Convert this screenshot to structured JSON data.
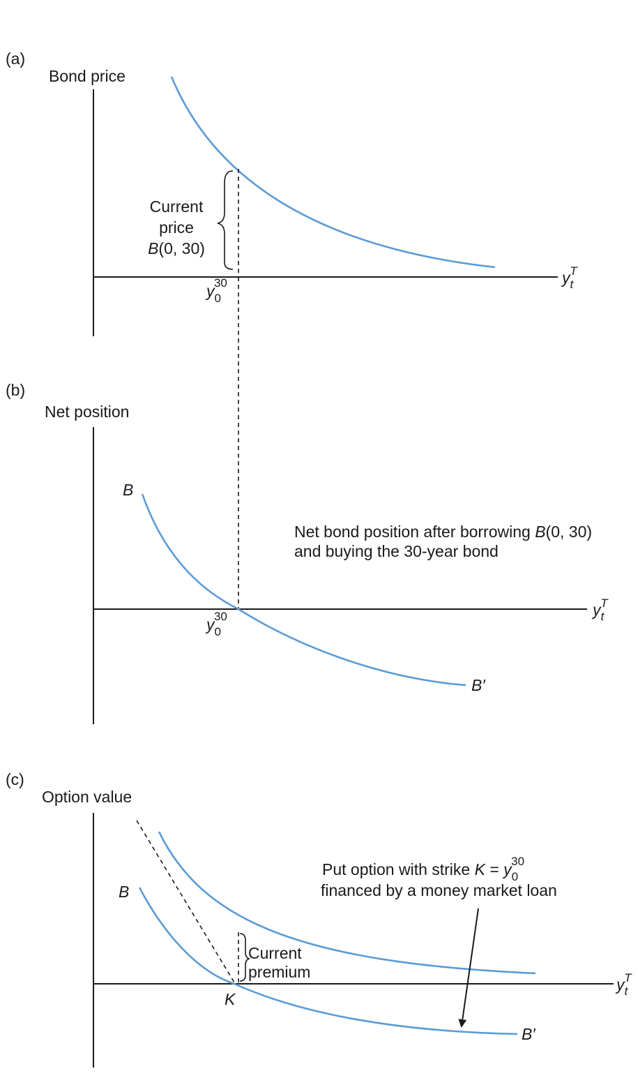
{
  "panel_a": {
    "tag": "(a)",
    "y_axis_label": "Bond price",
    "x_axis_symbol": "y",
    "x_axis_sub": "t",
    "x_axis_sup": "T",
    "brace_label_1": "Current",
    "brace_label_2": "price",
    "brace_label_3_b": "B",
    "brace_label_3_rest": "(0, 30)",
    "tick_symbol": "y",
    "tick_sub": "0",
    "tick_sup": "30"
  },
  "panel_b": {
    "tag": "(b)",
    "y_axis_label": "Net position",
    "x_axis_symbol": "y",
    "x_axis_sub": "t",
    "x_axis_sup": "T",
    "curve_start_label": "B",
    "curve_end_label": "B′",
    "tick_symbol": "y",
    "tick_sub": "0",
    "tick_sup": "30",
    "annotation_line1_pre": "Net bond position after borrowing ",
    "annotation_line1_b": "B",
    "annotation_line1_post": "(0, 30)",
    "annotation_line2": "and buying the 30-year bond"
  },
  "panel_c": {
    "tag": "(c)",
    "y_axis_label": "Option value",
    "x_axis_symbol": "y",
    "x_axis_sub": "t",
    "x_axis_sup": "T",
    "curve_start_label": "B",
    "curve_end_label": "B′",
    "strike_label": "K",
    "premium_label_1": "Current",
    "premium_label_2": "premium",
    "annotation_line1_pre": "Put option with strike ",
    "annotation_line1_k": "K",
    "annotation_line1_eq": " = ",
    "annotation_line1_y": "y",
    "annotation_line1_sub": "0",
    "annotation_line1_sup": "30",
    "annotation_line2": "financed by a money market loan"
  },
  "colors": {
    "curve": "#5b9bd5",
    "ink": "#1a1a1a"
  }
}
